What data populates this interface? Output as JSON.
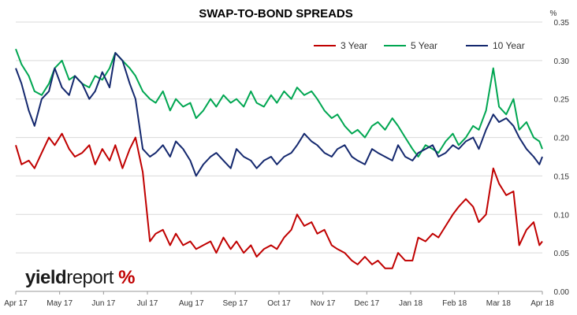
{
  "chart_data": {
    "type": "line",
    "title": "SWAP-TO-BOND SPREADS",
    "ylabel": "%",
    "xlabel": "",
    "ylim": [
      0,
      0.35
    ],
    "yticks": [
      "0.00",
      "0.05",
      "0.10",
      "0.15",
      "0.20",
      "0.25",
      "0.30",
      "0.35"
    ],
    "x_ticks": [
      "Apr 17",
      "May 17",
      "Jun 17",
      "Jul 17",
      "Aug 17",
      "Sep 17",
      "Oct 17",
      "Nov 17",
      "Dec 17",
      "Jan 18",
      "Feb 18",
      "Mar 18",
      "Apr 18"
    ],
    "x_range": [
      "2017-04-01",
      "2018-04-01"
    ],
    "grid": true,
    "legend_position": "top-right",
    "series": [
      {
        "name": "3 Year",
        "color": "#c00000",
        "x": [
          "2017-04-01",
          "2017-04-05",
          "2017-04-10",
          "2017-04-14",
          "2017-04-19",
          "2017-04-24",
          "2017-04-28",
          "2017-05-03",
          "2017-05-08",
          "2017-05-12",
          "2017-05-17",
          "2017-05-22",
          "2017-05-26",
          "2017-05-31",
          "2017-06-05",
          "2017-06-09",
          "2017-06-14",
          "2017-06-19",
          "2017-06-23",
          "2017-06-28",
          "2017-07-03",
          "2017-07-07",
          "2017-07-12",
          "2017-07-17",
          "2017-07-21",
          "2017-07-26",
          "2017-07-31",
          "2017-08-04",
          "2017-08-09",
          "2017-08-14",
          "2017-08-18",
          "2017-08-23",
          "2017-08-28",
          "2017-09-01",
          "2017-09-06",
          "2017-09-11",
          "2017-09-15",
          "2017-09-20",
          "2017-09-25",
          "2017-09-29",
          "2017-10-04",
          "2017-10-09",
          "2017-10-13",
          "2017-10-18",
          "2017-10-23",
          "2017-10-27",
          "2017-11-01",
          "2017-11-06",
          "2017-11-10",
          "2017-11-15",
          "2017-11-20",
          "2017-11-24",
          "2017-11-29",
          "2017-12-04",
          "2017-12-08",
          "2017-12-13",
          "2017-12-18",
          "2017-12-22",
          "2017-12-27",
          "2018-01-01",
          "2018-01-05",
          "2018-01-10",
          "2018-01-15",
          "2018-01-19",
          "2018-01-24",
          "2018-01-29",
          "2018-02-02",
          "2018-02-07",
          "2018-02-12",
          "2018-02-16",
          "2018-02-21",
          "2018-02-26",
          "2018-03-02",
          "2018-03-07",
          "2018-03-12",
          "2018-03-16",
          "2018-03-21",
          "2018-03-26",
          "2018-03-30",
          "2018-04-01"
        ],
        "values": [
          0.19,
          0.165,
          0.17,
          0.16,
          0.18,
          0.2,
          0.19,
          0.205,
          0.185,
          0.175,
          0.18,
          0.19,
          0.165,
          0.185,
          0.17,
          0.19,
          0.16,
          0.185,
          0.2,
          0.155,
          0.065,
          0.075,
          0.08,
          0.06,
          0.075,
          0.06,
          0.065,
          0.055,
          0.06,
          0.065,
          0.05,
          0.07,
          0.055,
          0.065,
          0.05,
          0.06,
          0.045,
          0.055,
          0.06,
          0.055,
          0.07,
          0.08,
          0.1,
          0.085,
          0.09,
          0.075,
          0.08,
          0.06,
          0.055,
          0.05,
          0.04,
          0.035,
          0.045,
          0.035,
          0.04,
          0.03,
          0.03,
          0.05,
          0.04,
          0.04,
          0.07,
          0.065,
          0.075,
          0.07,
          0.085,
          0.1,
          0.11,
          0.12,
          0.11,
          0.09,
          0.1,
          0.16,
          0.14,
          0.125,
          0.13,
          0.06,
          0.08,
          0.09,
          0.06,
          0.065
        ]
      },
      {
        "name": "5 Year",
        "color": "#00a651",
        "x": [
          "2017-04-01",
          "2017-04-05",
          "2017-04-10",
          "2017-04-14",
          "2017-04-19",
          "2017-04-24",
          "2017-04-28",
          "2017-05-03",
          "2017-05-08",
          "2017-05-12",
          "2017-05-17",
          "2017-05-22",
          "2017-05-26",
          "2017-05-31",
          "2017-06-05",
          "2017-06-09",
          "2017-06-14",
          "2017-06-19",
          "2017-06-23",
          "2017-06-28",
          "2017-07-03",
          "2017-07-07",
          "2017-07-12",
          "2017-07-17",
          "2017-07-21",
          "2017-07-26",
          "2017-07-31",
          "2017-08-04",
          "2017-08-09",
          "2017-08-14",
          "2017-08-18",
          "2017-08-23",
          "2017-08-28",
          "2017-09-01",
          "2017-09-06",
          "2017-09-11",
          "2017-09-15",
          "2017-09-20",
          "2017-09-25",
          "2017-09-29",
          "2017-10-04",
          "2017-10-09",
          "2017-10-13",
          "2017-10-18",
          "2017-10-23",
          "2017-10-27",
          "2017-11-01",
          "2017-11-06",
          "2017-11-10",
          "2017-11-15",
          "2017-11-20",
          "2017-11-24",
          "2017-11-29",
          "2017-12-04",
          "2017-12-08",
          "2017-12-13",
          "2017-12-18",
          "2017-12-22",
          "2017-12-27",
          "2018-01-01",
          "2018-01-05",
          "2018-01-10",
          "2018-01-15",
          "2018-01-19",
          "2018-01-24",
          "2018-01-29",
          "2018-02-02",
          "2018-02-07",
          "2018-02-12",
          "2018-02-16",
          "2018-02-21",
          "2018-02-26",
          "2018-03-02",
          "2018-03-07",
          "2018-03-12",
          "2018-03-16",
          "2018-03-21",
          "2018-03-26",
          "2018-03-30",
          "2018-04-01"
        ],
        "values": [
          0.315,
          0.295,
          0.28,
          0.26,
          0.255,
          0.27,
          0.29,
          0.3,
          0.275,
          0.28,
          0.27,
          0.265,
          0.28,
          0.275,
          0.29,
          0.31,
          0.3,
          0.29,
          0.28,
          0.26,
          0.25,
          0.245,
          0.26,
          0.235,
          0.25,
          0.24,
          0.245,
          0.225,
          0.235,
          0.25,
          0.24,
          0.255,
          0.245,
          0.25,
          0.24,
          0.26,
          0.245,
          0.24,
          0.255,
          0.245,
          0.26,
          0.25,
          0.265,
          0.255,
          0.26,
          0.25,
          0.235,
          0.225,
          0.23,
          0.215,
          0.205,
          0.21,
          0.2,
          0.215,
          0.22,
          0.21,
          0.225,
          0.215,
          0.2,
          0.185,
          0.175,
          0.19,
          0.185,
          0.18,
          0.195,
          0.205,
          0.19,
          0.2,
          0.215,
          0.21,
          0.235,
          0.29,
          0.24,
          0.23,
          0.25,
          0.21,
          0.22,
          0.2,
          0.195,
          0.185
        ]
      },
      {
        "name": "10 Year",
        "color": "#14286e",
        "x": [
          "2017-04-01",
          "2017-04-05",
          "2017-04-10",
          "2017-04-14",
          "2017-04-19",
          "2017-04-24",
          "2017-04-28",
          "2017-05-03",
          "2017-05-08",
          "2017-05-12",
          "2017-05-17",
          "2017-05-22",
          "2017-05-26",
          "2017-05-31",
          "2017-06-05",
          "2017-06-09",
          "2017-06-14",
          "2017-06-19",
          "2017-06-23",
          "2017-06-28",
          "2017-07-03",
          "2017-07-07",
          "2017-07-12",
          "2017-07-17",
          "2017-07-21",
          "2017-07-26",
          "2017-07-31",
          "2017-08-04",
          "2017-08-09",
          "2017-08-14",
          "2017-08-18",
          "2017-08-23",
          "2017-08-28",
          "2017-09-01",
          "2017-09-06",
          "2017-09-11",
          "2017-09-15",
          "2017-09-20",
          "2017-09-25",
          "2017-09-29",
          "2017-10-04",
          "2017-10-09",
          "2017-10-13",
          "2017-10-18",
          "2017-10-23",
          "2017-10-27",
          "2017-11-01",
          "2017-11-06",
          "2017-11-10",
          "2017-11-15",
          "2017-11-20",
          "2017-11-24",
          "2017-11-29",
          "2017-12-04",
          "2017-12-08",
          "2017-12-13",
          "2017-12-18",
          "2017-12-22",
          "2017-12-27",
          "2018-01-01",
          "2018-01-05",
          "2018-01-10",
          "2018-01-15",
          "2018-01-19",
          "2018-01-24",
          "2018-01-29",
          "2018-02-02",
          "2018-02-07",
          "2018-02-12",
          "2018-02-16",
          "2018-02-21",
          "2018-02-26",
          "2018-03-02",
          "2018-03-07",
          "2018-03-12",
          "2018-03-16",
          "2018-03-21",
          "2018-03-26",
          "2018-03-30",
          "2018-04-01"
        ],
        "values": [
          0.29,
          0.27,
          0.235,
          0.215,
          0.25,
          0.26,
          0.29,
          0.265,
          0.255,
          0.28,
          0.27,
          0.25,
          0.26,
          0.285,
          0.265,
          0.31,
          0.3,
          0.27,
          0.25,
          0.185,
          0.175,
          0.18,
          0.19,
          0.175,
          0.195,
          0.185,
          0.17,
          0.15,
          0.165,
          0.175,
          0.18,
          0.17,
          0.16,
          0.185,
          0.175,
          0.17,
          0.16,
          0.17,
          0.175,
          0.165,
          0.175,
          0.18,
          0.19,
          0.205,
          0.195,
          0.19,
          0.18,
          0.175,
          0.185,
          0.19,
          0.175,
          0.17,
          0.165,
          0.185,
          0.18,
          0.175,
          0.17,
          0.19,
          0.175,
          0.17,
          0.18,
          0.185,
          0.19,
          0.175,
          0.18,
          0.19,
          0.185,
          0.195,
          0.2,
          0.185,
          0.21,
          0.23,
          0.22,
          0.225,
          0.215,
          0.2,
          0.185,
          0.175,
          0.165,
          0.175
        ]
      }
    ]
  },
  "brand": {
    "part1": "yield",
    "part2": "report",
    "part3": "%",
    "accent_color": "#c00000"
  }
}
